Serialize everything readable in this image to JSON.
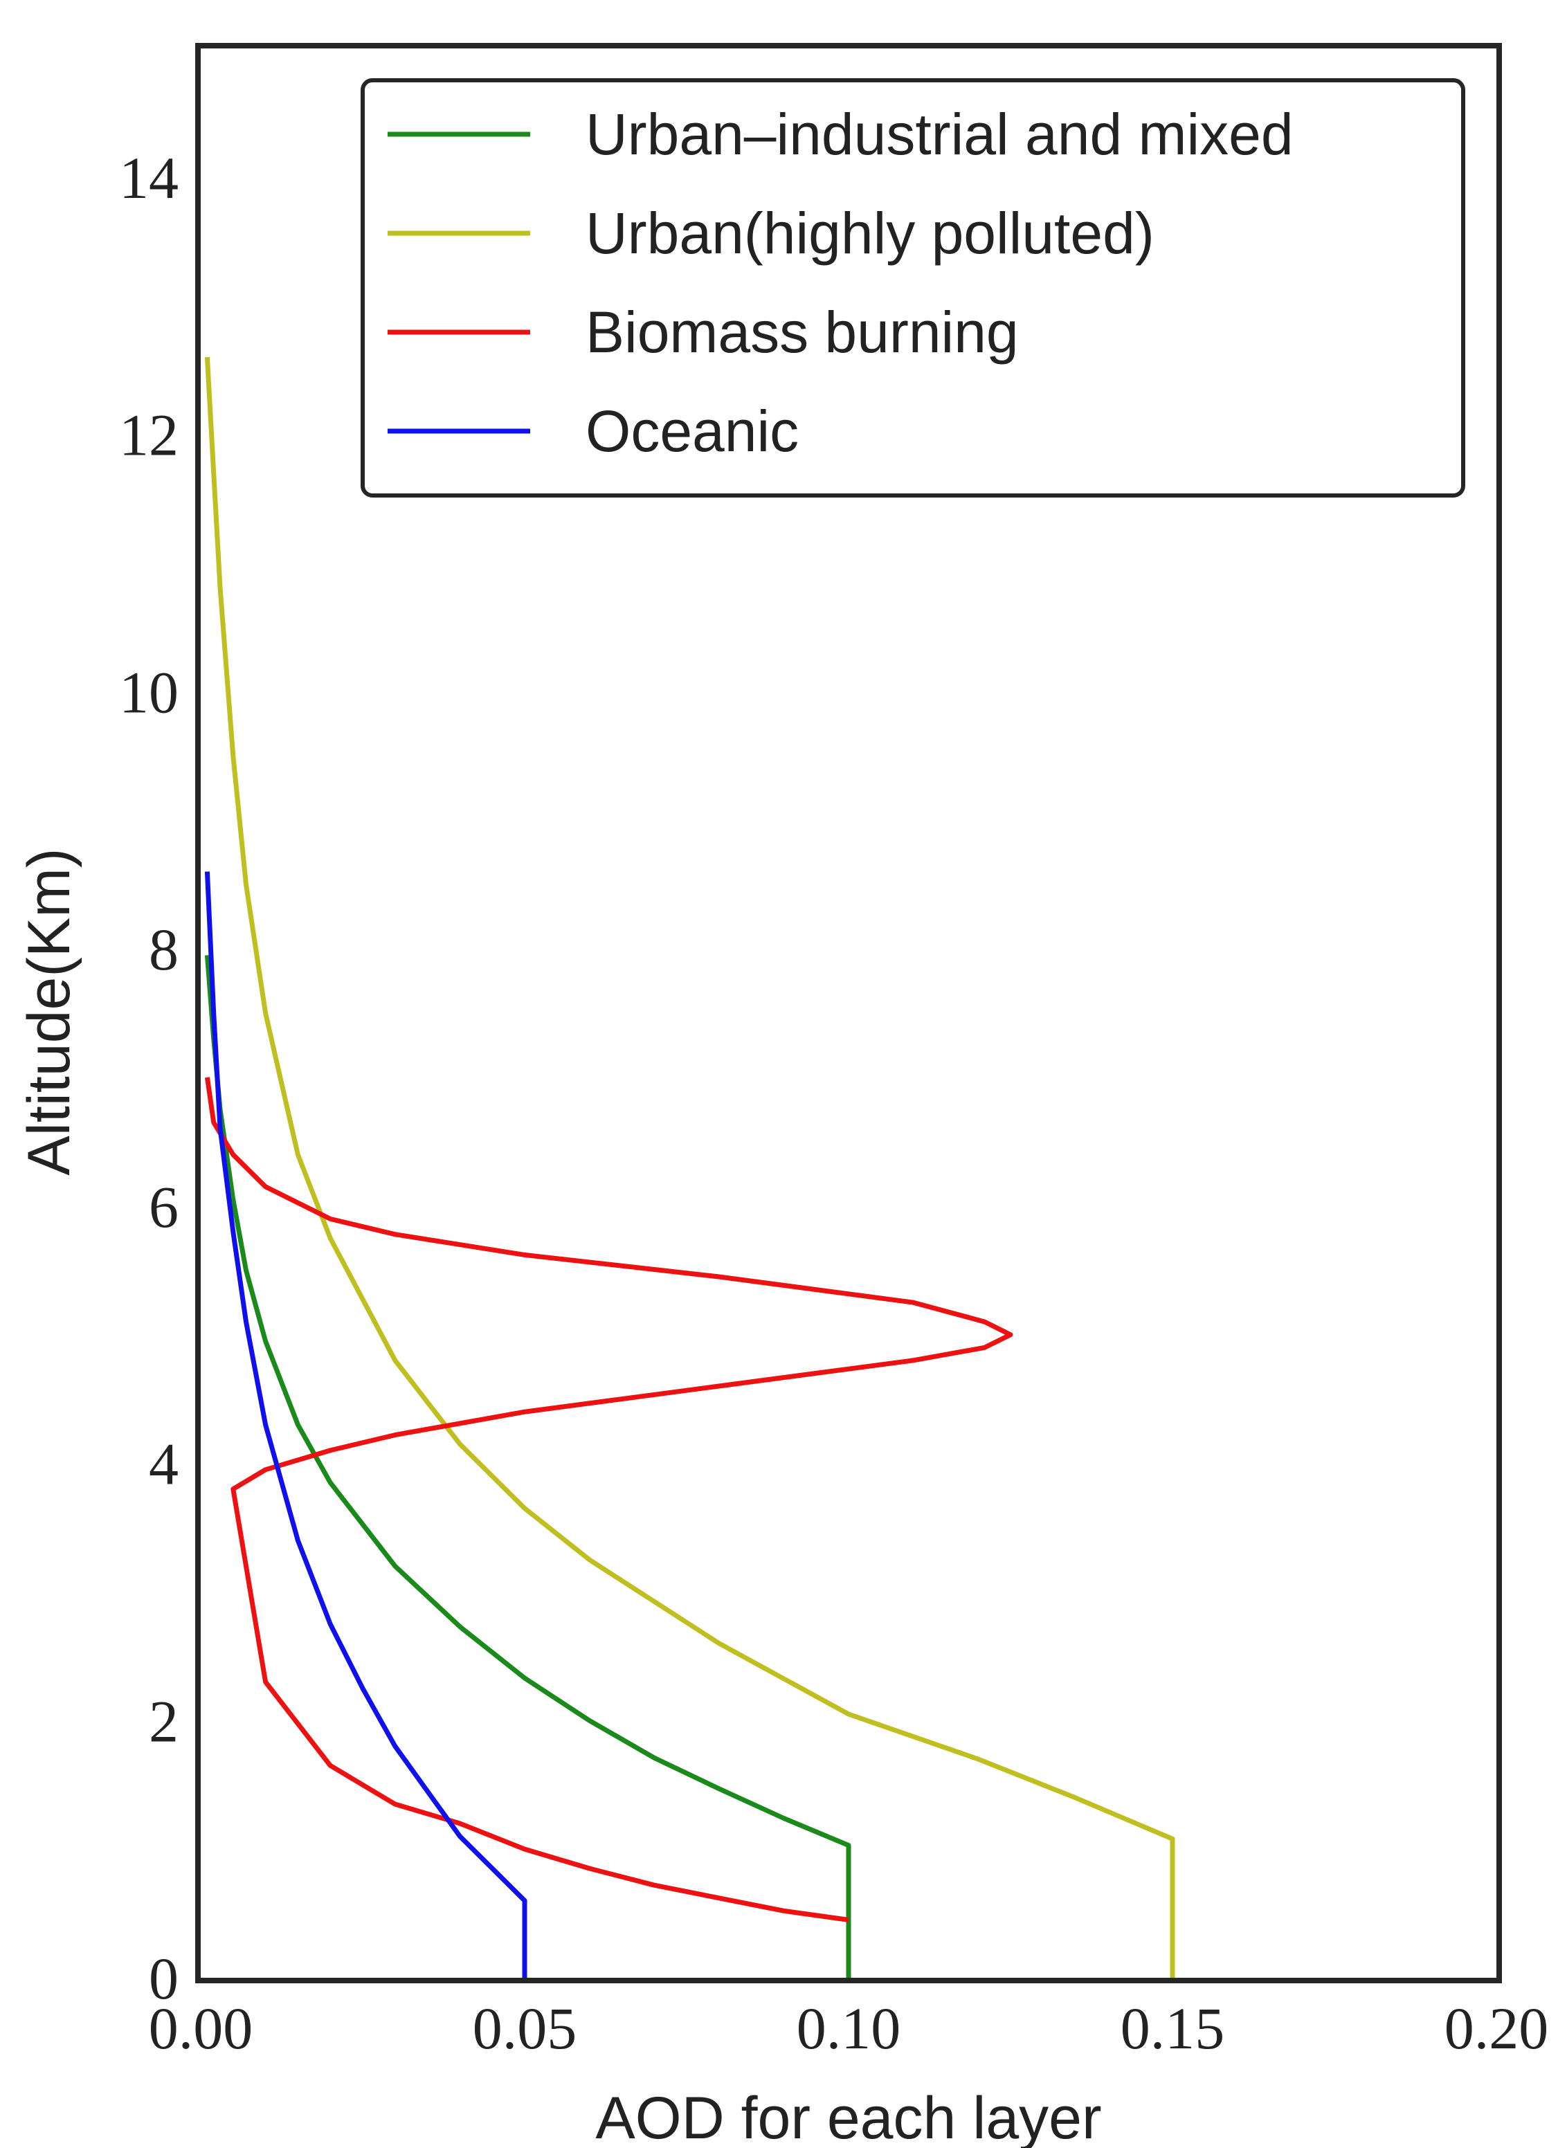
{
  "chart_data": {
    "type": "line",
    "title": "",
    "xlabel": "AOD for each layer",
    "ylabel": "Altitude(Km)",
    "xlim": [
      0,
      0.2
    ],
    "ylim": [
      0,
      15
    ],
    "grid": false,
    "legend_position": "top-right",
    "x_ticks": [
      {
        "value": 0.0,
        "label": "0.00"
      },
      {
        "value": 0.05,
        "label": "0.05"
      },
      {
        "value": 0.1,
        "label": "0.10"
      },
      {
        "value": 0.15,
        "label": "0.15"
      },
      {
        "value": 0.2,
        "label": "0.20"
      }
    ],
    "y_ticks": [
      {
        "value": 0,
        "label": "0"
      },
      {
        "value": 2,
        "label": "2"
      },
      {
        "value": 4,
        "label": "4"
      },
      {
        "value": 6,
        "label": "6"
      },
      {
        "value": 8,
        "label": "8"
      },
      {
        "value": 10,
        "label": "10"
      },
      {
        "value": 12,
        "label": "12"
      },
      {
        "value": 14,
        "label": "14"
      }
    ],
    "series": [
      {
        "name": "Urban–industrial and mixed",
        "color": "#1a8a1a",
        "points": [
          [
            0.1,
            0
          ],
          [
            0.1,
            1.03
          ],
          [
            0.09,
            1.24
          ],
          [
            0.08,
            1.47
          ],
          [
            0.07,
            1.71
          ],
          [
            0.06,
            2.0
          ],
          [
            0.05,
            2.33
          ],
          [
            0.04,
            2.73
          ],
          [
            0.03,
            3.2
          ],
          [
            0.02,
            3.85
          ],
          [
            0.015,
            4.3
          ],
          [
            0.01,
            4.95
          ],
          [
            0.007,
            5.5
          ],
          [
            0.005,
            6.05
          ],
          [
            0.003,
            6.75
          ],
          [
            0.002,
            7.3
          ],
          [
            0.001,
            7.95
          ]
        ]
      },
      {
        "name": "Urban(highly polluted)",
        "color": "#bfbf1f",
        "points": [
          [
            0.15,
            0
          ],
          [
            0.15,
            1.08
          ],
          [
            0.135,
            1.4
          ],
          [
            0.12,
            1.7
          ],
          [
            0.1,
            2.05
          ],
          [
            0.08,
            2.6
          ],
          [
            0.06,
            3.25
          ],
          [
            0.05,
            3.65
          ],
          [
            0.04,
            4.15
          ],
          [
            0.03,
            4.8
          ],
          [
            0.02,
            5.75
          ],
          [
            0.015,
            6.4
          ],
          [
            0.01,
            7.5
          ],
          [
            0.007,
            8.5
          ],
          [
            0.005,
            9.5
          ],
          [
            0.003,
            10.8
          ],
          [
            0.002,
            11.7
          ],
          [
            0.001,
            12.6
          ]
        ]
      },
      {
        "name": "Biomass burning",
        "color": "#ee1111",
        "points": [
          [
            0.1,
            0.45
          ],
          [
            0.09,
            0.52
          ],
          [
            0.08,
            0.62
          ],
          [
            0.07,
            0.72
          ],
          [
            0.06,
            0.85
          ],
          [
            0.05,
            1.0
          ],
          [
            0.04,
            1.2
          ],
          [
            0.03,
            1.35
          ],
          [
            0.02,
            1.65
          ],
          [
            0.01,
            2.3
          ],
          [
            0.005,
            3.8
          ],
          [
            0.01,
            3.95
          ],
          [
            0.02,
            4.1
          ],
          [
            0.03,
            4.22
          ],
          [
            0.05,
            4.4
          ],
          [
            0.08,
            4.6
          ],
          [
            0.11,
            4.8
          ],
          [
            0.121,
            4.9
          ],
          [
            0.125,
            5.0
          ],
          [
            0.121,
            5.1
          ],
          [
            0.11,
            5.25
          ],
          [
            0.08,
            5.45
          ],
          [
            0.05,
            5.62
          ],
          [
            0.03,
            5.78
          ],
          [
            0.02,
            5.9
          ],
          [
            0.01,
            6.15
          ],
          [
            0.005,
            6.4
          ],
          [
            0.002,
            6.65
          ],
          [
            0.001,
            7.0
          ]
        ]
      },
      {
        "name": "Oceanic",
        "color": "#1010ee",
        "points": [
          [
            0.05,
            0
          ],
          [
            0.05,
            0.6
          ],
          [
            0.045,
            0.85
          ],
          [
            0.04,
            1.1
          ],
          [
            0.035,
            1.45
          ],
          [
            0.03,
            1.8
          ],
          [
            0.025,
            2.25
          ],
          [
            0.02,
            2.75
          ],
          [
            0.015,
            3.4
          ],
          [
            0.01,
            4.3
          ],
          [
            0.007,
            5.1
          ],
          [
            0.005,
            5.8
          ],
          [
            0.003,
            6.6
          ],
          [
            0.002,
            7.5
          ],
          [
            0.001,
            8.6
          ]
        ]
      }
    ]
  }
}
